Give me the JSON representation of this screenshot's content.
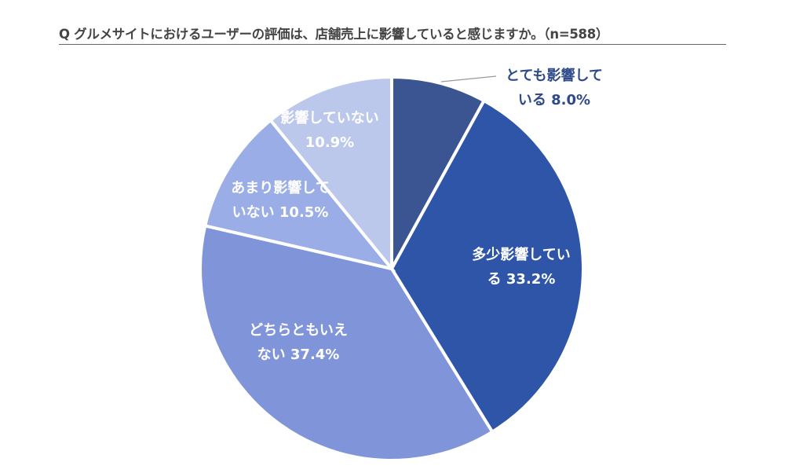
{
  "chart_data": {
    "type": "pie",
    "title": "Q グルメサイトにおけるユーザーの評価は、店舗売上に影響していると感じますか。（n=588）",
    "categories": [
      "とても影響している",
      "多少影響している",
      "どちらともいえない",
      "あまり影響していない",
      "影響していない"
    ],
    "values": [
      8.0,
      33.2,
      37.4,
      10.5,
      10.9
    ],
    "colors": [
      "#3a5592",
      "#2f55a8",
      "#8094d9",
      "#9aade6",
      "#bcc7ec"
    ],
    "labels": [
      {
        "line1": "とても影響して",
        "line2": "いる 8.0%"
      },
      {
        "line1": "多少影響してい",
        "line2": "る 33.2%"
      },
      {
        "line1": "どちらともいえ",
        "line2": "ない 37.4%"
      },
      {
        "line1": "あまり影響して",
        "line2": "いない 10.5%"
      },
      {
        "line1": "影響していない",
        "line2": "10.9%"
      }
    ],
    "start_angle": "12 o'clock, clockwise",
    "legend": "none"
  }
}
